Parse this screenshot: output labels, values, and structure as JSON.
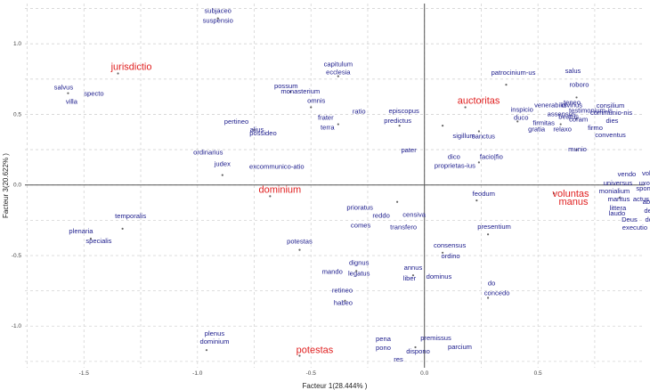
{
  "chart_data": {
    "type": "scatter",
    "xlabel": "Facteur 1(28.444% )",
    "ylabel": "Facteur 3(20.622% )",
    "xlim": [
      -1.76,
      0.97
    ],
    "ylim": [
      -1.295,
      1.285
    ],
    "x_ticks": [
      -1.5,
      -1.0,
      -0.5,
      0.0,
      0.5
    ],
    "x_tick_labels": [
      "-1.5",
      "-1.0",
      "-0.5",
      "0.0",
      "0.5"
    ],
    "y_ticks": [
      -1.0,
      -0.5,
      0.0,
      0.5,
      1.0
    ],
    "y_tick_labels": [
      "-1.0",
      "-0.5",
      "0.0",
      "0.5",
      "1.0"
    ],
    "grid": true,
    "colors": {
      "words": "#1c1c8c",
      "modalities": "#e02020",
      "points": "#666666",
      "grid": "#d4d4d4",
      "axis": "#555555"
    },
    "modalities": [
      {
        "label": "jurisdictio",
        "x": -1.35,
        "y": 0.79
      },
      {
        "label": "auctoritas",
        "x": 0.18,
        "y": 0.55
      },
      {
        "label": "dominium",
        "x": -0.68,
        "y": -0.08
      },
      {
        "label": "voluntas",
        "x": 0.57,
        "y": -0.06
      },
      {
        "label": "manus",
        "x": 0.57,
        "y": -0.06
      },
      {
        "label": "potestas",
        "x": -0.55,
        "y": -1.21
      }
    ],
    "words": [
      {
        "label": "subjaceo",
        "x": -0.91,
        "y": 1.18
      },
      {
        "label": "suspensio",
        "x": -0.91,
        "y": 1.18
      },
      {
        "label": "salvus",
        "x": -1.57,
        "y": 0.65
      },
      {
        "label": "specto",
        "x": -1.57,
        "y": 0.65
      },
      {
        "label": "villa",
        "x": -1.57,
        "y": 0.65
      },
      {
        "label": "capitulum",
        "x": -0.38,
        "y": 0.77
      },
      {
        "label": "ecclesia",
        "x": -0.38,
        "y": 0.77
      },
      {
        "label": "possum",
        "x": -0.59,
        "y": 0.66
      },
      {
        "label": "monasterium",
        "x": -0.59,
        "y": 0.66
      },
      {
        "label": "omnis",
        "x": -0.5,
        "y": 0.55
      },
      {
        "label": "ratio",
        "x": -0.5,
        "y": 0.55
      },
      {
        "label": "pertineo",
        "x": -0.75,
        "y": 0.39
      },
      {
        "label": "alius",
        "x": -0.75,
        "y": 0.39
      },
      {
        "label": "possideo",
        "x": -0.75,
        "y": 0.39
      },
      {
        "label": "frater",
        "x": -0.38,
        "y": 0.43
      },
      {
        "label": "terra",
        "x": -0.38,
        "y": 0.43
      },
      {
        "label": "episcopus",
        "x": -0.11,
        "y": 0.42
      },
      {
        "label": "predictus",
        "x": -0.11,
        "y": 0.42
      },
      {
        "label": "sigillum",
        "x": 0.08,
        "y": 0.42
      },
      {
        "label": "patrocinium-us",
        "x": 0.36,
        "y": 0.71
      },
      {
        "label": "salus",
        "x": 0.36,
        "y": 0.71
      },
      {
        "label": "roboro",
        "x": 0.67,
        "y": 0.62
      },
      {
        "label": "teneo",
        "x": 0.67,
        "y": 0.62
      },
      {
        "label": "testimonium-is",
        "x": 0.67,
        "y": 0.62
      },
      {
        "label": "inspicio",
        "x": 0.41,
        "y": 0.45
      },
      {
        "label": "venerabilis",
        "x": 0.41,
        "y": 0.45
      },
      {
        "label": "divinus",
        "x": 0.41,
        "y": 0.45
      },
      {
        "label": "consilium",
        "x": 0.67,
        "y": 0.47
      },
      {
        "label": "communio-nis",
        "x": 0.67,
        "y": 0.47
      },
      {
        "label": "sanctus",
        "x": 0.24,
        "y": 0.38
      },
      {
        "label": "duco",
        "x": 0.41,
        "y": 0.45
      },
      {
        "label": "assensus",
        "x": 0.6,
        "y": 0.43
      },
      {
        "label": "beatus",
        "x": 0.6,
        "y": 0.43
      },
      {
        "label": "coram",
        "x": 0.6,
        "y": 0.43
      },
      {
        "label": "firmitas",
        "x": 0.6,
        "y": 0.43
      },
      {
        "label": "dies",
        "x": 0.67,
        "y": 0.47
      },
      {
        "label": "gratia",
        "x": 0.6,
        "y": 0.43
      },
      {
        "label": "relaxo",
        "x": 0.6,
        "y": 0.43
      },
      {
        "label": "firmo",
        "x": 0.67,
        "y": 0.47
      },
      {
        "label": "conventus",
        "x": 0.67,
        "y": 0.47
      },
      {
        "label": "pater",
        "x": 0.08,
        "y": 0.42
      },
      {
        "label": "munio",
        "x": 0.67,
        "y": 0.25
      },
      {
        "label": "dico",
        "x": 0.24,
        "y": 0.16
      },
      {
        "label": "facio|fio",
        "x": 0.24,
        "y": 0.16
      },
      {
        "label": "proprietas-ius",
        "x": 0.24,
        "y": 0.16
      },
      {
        "label": "vendo",
        "x": 0.86,
        "y": -0.09
      },
      {
        "label": "volo",
        "x": 0.86,
        "y": -0.09
      },
      {
        "label": "universus",
        "x": 0.86,
        "y": -0.09
      },
      {
        "label": "uxor",
        "x": 0.86,
        "y": -0.09
      },
      {
        "label": "spontaneus",
        "x": 0.86,
        "y": -0.09
      },
      {
        "label": "monialium",
        "x": 0.86,
        "y": -0.09
      },
      {
        "label": "maritus",
        "x": 0.86,
        "y": -0.09
      },
      {
        "label": "actus",
        "x": 0.86,
        "y": -0.09
      },
      {
        "label": "abbas",
        "x": 0.86,
        "y": -0.09
      },
      {
        "label": "littera",
        "x": 0.86,
        "y": -0.09
      },
      {
        "label": "debeo",
        "x": 0.86,
        "y": -0.09
      },
      {
        "label": "laudo",
        "x": 0.86,
        "y": -0.09
      },
      {
        "label": "Deus",
        "x": 0.86,
        "y": -0.09
      },
      {
        "label": "dono",
        "x": 0.86,
        "y": -0.09
      },
      {
        "label": "executio",
        "x": 0.86,
        "y": -0.09
      },
      {
        "label": "ordinarius",
        "x": -0.89,
        "y": 0.07
      },
      {
        "label": "judex",
        "x": -0.89,
        "y": 0.07
      },
      {
        "label": "excommunico-atio",
        "x": -0.89,
        "y": 0.07
      },
      {
        "label": "prioratus",
        "x": -0.12,
        "y": -0.12
      },
      {
        "label": "reddo",
        "x": -0.12,
        "y": -0.12
      },
      {
        "label": "censiva",
        "x": -0.12,
        "y": -0.12
      },
      {
        "label": "comes",
        "x": -0.12,
        "y": -0.12
      },
      {
        "label": "transfero",
        "x": -0.12,
        "y": -0.12
      },
      {
        "label": "feodum",
        "x": 0.23,
        "y": -0.11
      },
      {
        "label": "temporalis",
        "x": -1.33,
        "y": -0.31
      },
      {
        "label": "plenaria",
        "x": -1.47,
        "y": -0.38
      },
      {
        "label": "specialis",
        "x": -1.47,
        "y": -0.38
      },
      {
        "label": "presentium",
        "x": 0.28,
        "y": -0.35
      },
      {
        "label": "potestas",
        "x": -0.55,
        "y": -0.46
      },
      {
        "label": "consensus",
        "x": 0.08,
        "y": -0.48
      },
      {
        "label": "ordino",
        "x": 0.08,
        "y": -0.48
      },
      {
        "label": "dignus",
        "x": -0.3,
        "y": -0.61
      },
      {
        "label": "mando",
        "x": -0.3,
        "y": -0.61
      },
      {
        "label": "legatus",
        "x": -0.3,
        "y": -0.61
      },
      {
        "label": "annus",
        "x": -0.05,
        "y": -0.64
      },
      {
        "label": "liber",
        "x": -0.05,
        "y": -0.64
      },
      {
        "label": "dominus",
        "x": -0.05,
        "y": -0.64
      },
      {
        "label": "retineo",
        "x": -0.35,
        "y": -0.82
      },
      {
        "label": "habeo",
        "x": -0.35,
        "y": -0.82
      },
      {
        "label": "do",
        "x": 0.28,
        "y": -0.8
      },
      {
        "label": "concedo",
        "x": 0.28,
        "y": -0.8
      },
      {
        "label": "pena",
        "x": -0.04,
        "y": -1.15
      },
      {
        "label": "premissus",
        "x": -0.04,
        "y": -1.15
      },
      {
        "label": "pono",
        "x": -0.04,
        "y": -1.15
      },
      {
        "label": "parcium",
        "x": -0.04,
        "y": -1.15
      },
      {
        "label": "dispono",
        "x": -0.04,
        "y": -1.15
      },
      {
        "label": "res",
        "x": -0.04,
        "y": -1.15
      },
      {
        "label": "plenus",
        "x": -0.96,
        "y": -1.17
      },
      {
        "label": "dominium",
        "x": -0.96,
        "y": -1.17
      }
    ]
  }
}
